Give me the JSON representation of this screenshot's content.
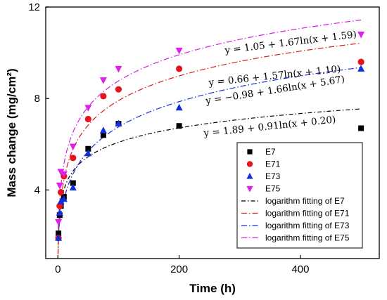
{
  "chart_data": {
    "type": "scatter",
    "xlabel": "Time (h)",
    "ylabel": "Mass change (mg/cm²)",
    "xlim": [
      -20,
      530
    ],
    "ylim": [
      1.0,
      12.0
    ],
    "xticks": [
      0,
      200,
      400
    ],
    "yticks": [
      4,
      8,
      12
    ],
    "grid": false,
    "legend_position": "lower-right",
    "series": [
      {
        "name": "E7",
        "marker": "square",
        "color": "#000000",
        "x": [
          1,
          3,
          5,
          10,
          25,
          50,
          75,
          100,
          200,
          500
        ],
        "y": [
          2.1,
          2.9,
          3.3,
          3.7,
          4.3,
          5.8,
          6.4,
          6.9,
          6.8,
          6.7
        ],
        "fit": {
          "a": 1.89,
          "b": 0.91,
          "c": 0.2,
          "label": "y = 1.89 + 0.91ln(x + 0.20)",
          "color": "#000000",
          "legend": "logarithm fitting of E7"
        }
      },
      {
        "name": "E71",
        "marker": "circle",
        "color": "#e8141c",
        "x": [
          1,
          3,
          5,
          10,
          25,
          50,
          75,
          100,
          200,
          500
        ],
        "y": [
          1.9,
          3.3,
          3.9,
          4.6,
          5.4,
          7.1,
          8.1,
          8.4,
          9.3,
          9.6
        ],
        "fit": {
          "a": 0.66,
          "b": 1.57,
          "c": 1.1,
          "label": "y = 0.66 + 1.57ln(x + 1.10)",
          "color": "#d42020",
          "legend": "logarithm fitting of E71"
        }
      },
      {
        "name": "E73",
        "marker": "triangle-up",
        "color": "#1030e0",
        "x": [
          1,
          3,
          5,
          10,
          25,
          50,
          75,
          100,
          200,
          500
        ],
        "y": [
          1.9,
          3.0,
          3.5,
          3.6,
          4.1,
          5.6,
          6.6,
          6.9,
          7.6,
          9.3
        ],
        "fit": {
          "a": -0.98,
          "b": 1.66,
          "c": 5.67,
          "label": "y = −0.98 + 1.66ln(x + 5.67)",
          "color": "#1a2ed8",
          "legend": "logarithm fitting of E73"
        }
      },
      {
        "name": "E75",
        "marker": "triangle-down",
        "color": "#e020e8",
        "x": [
          1,
          3,
          5,
          10,
          25,
          50,
          75,
          100,
          200,
          500
        ],
        "y": [
          2.6,
          4.2,
          4.8,
          4.7,
          5.9,
          7.6,
          8.8,
          9.3,
          10.1,
          10.8
        ],
        "fit": {
          "a": 1.05,
          "b": 1.67,
          "c": 1.59,
          "label": "y = 1.05 + 1.67ln(x + 1.59)",
          "color": "#d020e0",
          "legend": "logarithm fitting of E75"
        }
      }
    ]
  }
}
